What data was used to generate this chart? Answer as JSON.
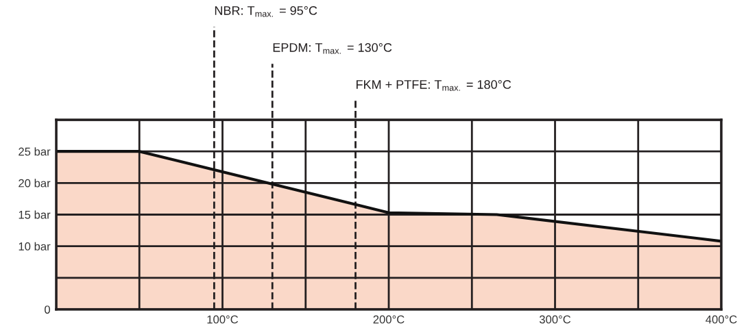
{
  "chart_data": {
    "type": "area",
    "x": [
      0,
      50,
      200,
      265,
      400
    ],
    "series": [
      {
        "color": "#fad8c8",
        "values": [
          25,
          25,
          15.3,
          15,
          10.8
        ]
      }
    ],
    "xlim": [
      0,
      400
    ],
    "xticks": [
      {
        "value": 0,
        "label": null
      },
      {
        "value": 50,
        "label": null
      },
      {
        "value": 100,
        "label": "100°C"
      },
      {
        "value": 150,
        "label": null
      },
      {
        "value": 200,
        "label": "200°C"
      },
      {
        "value": 250,
        "label": null
      },
      {
        "value": 300,
        "label": "300°C"
      },
      {
        "value": 350,
        "label": null
      },
      {
        "value": 400,
        "label": "400°C"
      }
    ],
    "ylim": [
      0,
      30
    ],
    "yticks": [
      {
        "value": 0,
        "label": "0"
      },
      {
        "value": 5,
        "label": null
      },
      {
        "value": 10,
        "label": "10 bar"
      },
      {
        "value": 15,
        "label": "15 bar"
      },
      {
        "value": 20,
        "label": "20 bar"
      },
      {
        "value": 25,
        "label": "25 bar"
      },
      {
        "value": 30,
        "label": null
      }
    ],
    "grid": true,
    "line_style": "solid",
    "ref_lines": [
      {
        "axis": "x",
        "value": 95,
        "label": "NBR: T$_{max.}$ = 95°C",
        "color": "#231f20",
        "line_style": "dashed"
      },
      {
        "axis": "x",
        "value": 130,
        "label": "EPDM: T$_{max.}$ = 130°C",
        "color": "#231f20",
        "line_style": "dashed"
      },
      {
        "axis": "x",
        "value": 180,
        "label": "FKM + PTFE: T$_{max.}$ = 180°C",
        "color": "#231f20",
        "line_style": "dashed"
      }
    ]
  }
}
